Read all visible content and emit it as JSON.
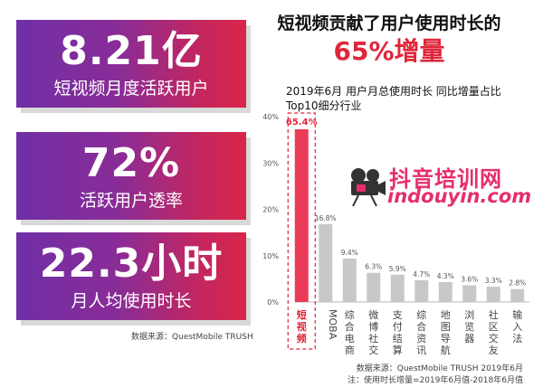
{
  "stats": [
    {
      "value": "8.21亿",
      "label": "短视频月度活跃用户"
    },
    {
      "value": "72%",
      "label": "活跃用户透率"
    },
    {
      "value": "22.3小时",
      "label": "月人均使用时长"
    }
  ],
  "left_source": "数据来源：QuestMobile TRUSH",
  "headline": "短视频贡献了用户使用时长的",
  "headline_highlight": "65%增量",
  "chart_title_line1": "2019年6月 用户月总使用时长 同比增量占比",
  "chart_title_line2": "Top10细分行业",
  "watermark": {
    "text": "抖音培训网",
    "url": "indouyin.com"
  },
  "footnote_source": "数据来源：QuestMobile TRUSH 2019年6月",
  "footnote_note": "注：使用时长增量=2019年6月值-2018年6月值",
  "colors": {
    "highlight": "#e0263a",
    "bar": "#c8c8c8",
    "highlight_bar": "#ec3b57"
  },
  "chart_data": {
    "type": "bar",
    "title": "2019年6月 用户月总使用时长 同比增量占比 Top10细分行业",
    "categories": [
      "短视频",
      "MOBA",
      "综合电商",
      "微博社交",
      "支付结算",
      "综合资讯",
      "地图导航",
      "浏览器",
      "社区交友",
      "输入法"
    ],
    "values": [
      65.4,
      16.8,
      9.4,
      6.3,
      5.9,
      4.7,
      4.3,
      3.6,
      3.3,
      2.8
    ],
    "data_labels": [
      "65.4%",
      "16.8%",
      "9.4%",
      "6.3%",
      "5.9%",
      "4.7%",
      "4.3%",
      "3.6%",
      "3.3%",
      "2.8%"
    ],
    "yticks": [
      "0%",
      "10%",
      "20%",
      "30%",
      "40%"
    ],
    "ylim": [
      0,
      40
    ],
    "highlight_index": 0,
    "grid": false
  }
}
